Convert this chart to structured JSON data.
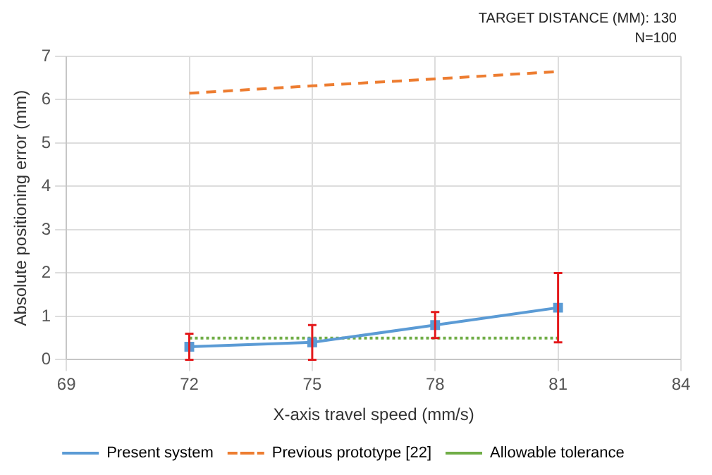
{
  "chart_data": {
    "type": "line",
    "xlabel": "X-axis travel speed (mm/s)",
    "ylabel": "Absolute positioning error (mm)",
    "annotations": [
      "TARGET DISTANCE (MM): 130",
      "N=100"
    ],
    "x": [
      72,
      75,
      78,
      81
    ],
    "series": [
      {
        "name": "Present system",
        "color": "#5b9bd5",
        "values": [
          0.3,
          0.4,
          0.8,
          1.2
        ],
        "errors": [
          [
            0,
            0.6
          ],
          [
            0,
            0.8
          ],
          [
            0.5,
            1.1
          ],
          [
            0.4,
            2.0
          ]
        ],
        "marker": "square",
        "line_style": "solid"
      },
      {
        "name": "Previous prototype [22]",
        "color": "#ed7d31",
        "values": [
          6.15,
          6.32,
          6.48,
          6.65
        ],
        "marker": "none",
        "line_style": "dashed"
      },
      {
        "name": "Allowable tolerance",
        "color": "#70ad47",
        "values": [
          0.5,
          0.5,
          0.5,
          0.5
        ],
        "marker": "none",
        "line_style": "dotted"
      }
    ],
    "xlim": [
      69,
      84
    ],
    "xticks": [
      69,
      72,
      75,
      78,
      81,
      84
    ],
    "ylim": [
      0,
      7
    ],
    "yticks": [
      0,
      1,
      2,
      3,
      4,
      5,
      6,
      7
    ],
    "grid": true,
    "legend": "bottom"
  }
}
